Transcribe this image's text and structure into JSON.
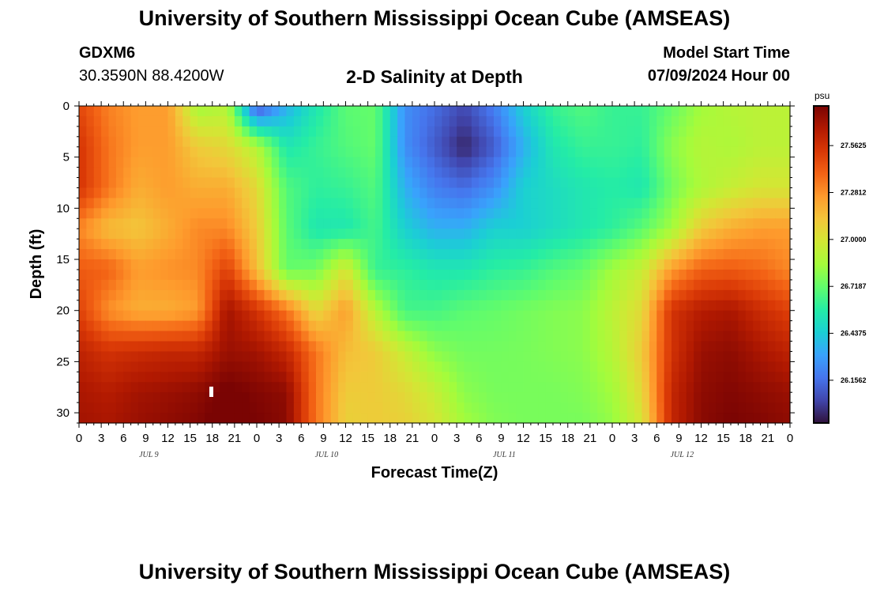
{
  "header": {
    "title": "University of Southern Mississippi Ocean Cube (AMSEAS)",
    "station_id": "GDXM6",
    "station_coords": "30.3590N  88.4200W",
    "subtitle": "2-D Salinity at Depth",
    "model_start_label": "Model Start Time",
    "model_start_value": "07/09/2024 Hour 00"
  },
  "footer": {
    "title": "University of Southern Mississippi Ocean Cube (AMSEAS)"
  },
  "colors": {
    "palette": [
      "#30123b",
      "#4145ab",
      "#4675ed",
      "#39a2fc",
      "#1bcfd4",
      "#24eca6",
      "#61fc6c",
      "#a4fc3b",
      "#d1e834",
      "#f3c63a",
      "#fe9b2d",
      "#f36315",
      "#d93806",
      "#b11901",
      "#7a0403"
    ]
  },
  "chart_data": {
    "type": "heatmap",
    "xlabel": "Forecast Time(Z)",
    "ylabel": "Depth (ft)",
    "x_tick_labels": [
      "0",
      "3",
      "6",
      "9",
      "12",
      "15",
      "18",
      "21",
      "0",
      "3",
      "6",
      "9",
      "12",
      "15",
      "18",
      "21",
      "0",
      "3",
      "6",
      "9",
      "12",
      "15",
      "18",
      "21",
      "0",
      "3",
      "6",
      "9",
      "12",
      "15",
      "18",
      "21",
      "0"
    ],
    "day_labels": [
      {
        "label": "JUL 9",
        "hour": 9
      },
      {
        "label": "JUL 10",
        "hour": 33
      },
      {
        "label": "JUL 11",
        "hour": 57
      },
      {
        "label": "JUL 12",
        "hour": 81
      }
    ],
    "x_range_hours": [
      0,
      96
    ],
    "y_range_ft": [
      0,
      31
    ],
    "y_ticks": [
      0,
      5,
      10,
      15,
      20,
      25,
      30
    ],
    "colorbar": {
      "unit": "psu",
      "range": [
        25.9,
        27.8
      ],
      "labels": [
        "27.5625",
        "27.2812",
        "27.0000",
        "26.7187",
        "26.4375",
        "26.1562"
      ],
      "values": [
        27.5625,
        27.28125,
        27.0,
        26.71875,
        26.4375,
        26.15625
      ]
    },
    "salinity_psu": {
      "hours": [
        0,
        4,
        8,
        12,
        16,
        20,
        24,
        28,
        32,
        36,
        40,
        44,
        48,
        52,
        56,
        60,
        64,
        68,
        72,
        76,
        80,
        84,
        88,
        92,
        96
      ],
      "depths_ft": [
        0,
        4,
        8,
        12,
        16,
        20,
        24,
        28,
        31
      ],
      "rows": [
        [
          27.48,
          27.32,
          27.25,
          27.25,
          26.85,
          26.9,
          26.05,
          26.35,
          26.55,
          26.7,
          26.72,
          26.25,
          26.15,
          26.05,
          26.2,
          26.45,
          26.62,
          26.68,
          26.62,
          26.62,
          26.72,
          26.85,
          26.9,
          26.92,
          26.92
        ],
        [
          27.55,
          27.35,
          27.25,
          27.25,
          27.1,
          27.05,
          26.9,
          26.55,
          26.62,
          26.68,
          26.72,
          26.25,
          26.1,
          25.95,
          26.1,
          26.35,
          26.55,
          26.62,
          26.62,
          26.6,
          26.8,
          26.9,
          26.88,
          26.92,
          26.92
        ],
        [
          27.55,
          27.35,
          27.2,
          27.25,
          27.2,
          27.2,
          27.05,
          26.68,
          26.6,
          26.62,
          26.68,
          26.35,
          26.2,
          26.15,
          26.25,
          26.45,
          26.5,
          26.55,
          26.58,
          26.55,
          26.75,
          26.88,
          26.95,
          27.0,
          27.0
        ],
        [
          27.3,
          27.15,
          27.12,
          27.2,
          27.3,
          27.3,
          27.1,
          26.7,
          26.55,
          26.55,
          26.65,
          26.45,
          26.35,
          26.35,
          26.45,
          26.45,
          26.5,
          26.55,
          26.6,
          26.7,
          26.85,
          27.1,
          27.2,
          27.25,
          27.25
        ],
        [
          27.42,
          27.4,
          27.25,
          27.28,
          27.3,
          27.5,
          27.15,
          26.72,
          26.75,
          27.0,
          26.62,
          26.6,
          26.55,
          26.55,
          26.6,
          26.62,
          26.68,
          26.72,
          26.85,
          26.95,
          27.25,
          27.4,
          27.42,
          27.38,
          27.3
        ],
        [
          27.5,
          27.28,
          27.2,
          27.2,
          27.25,
          27.7,
          27.55,
          27.35,
          27.05,
          27.25,
          26.9,
          26.65,
          26.65,
          26.7,
          26.72,
          26.75,
          26.78,
          26.8,
          26.92,
          27.05,
          27.55,
          27.65,
          27.68,
          27.58,
          27.5
        ],
        [
          27.62,
          27.55,
          27.58,
          27.6,
          27.6,
          27.72,
          27.7,
          27.6,
          27.35,
          27.15,
          27.1,
          26.95,
          26.8,
          26.75,
          26.75,
          26.76,
          26.78,
          26.8,
          26.9,
          27.1,
          27.55,
          27.72,
          27.75,
          27.68,
          27.62
        ],
        [
          27.68,
          27.65,
          27.7,
          27.72,
          27.75,
          27.82,
          27.78,
          27.75,
          27.35,
          27.1,
          27.1,
          27.05,
          26.95,
          26.8,
          26.76,
          26.76,
          26.76,
          26.78,
          26.85,
          27.05,
          27.6,
          27.75,
          27.78,
          27.75,
          27.72
        ],
        [
          27.7,
          27.68,
          27.72,
          27.75,
          27.78,
          27.85,
          27.8,
          27.76,
          27.35,
          27.08,
          27.1,
          27.08,
          27.0,
          26.85,
          26.78,
          26.76,
          26.76,
          26.76,
          26.82,
          27.0,
          27.6,
          27.76,
          27.8,
          27.78,
          27.75
        ]
      ]
    }
  }
}
